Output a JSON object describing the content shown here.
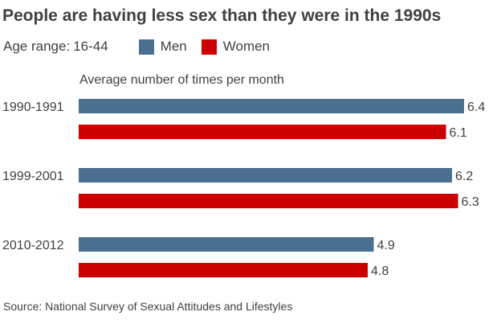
{
  "title": "People are having less sex than they were in the 1990s",
  "legend": {
    "age_label": "Age range:",
    "age_value": "16-44",
    "items": [
      {
        "label": "Men",
        "color": "#4a6f8f"
      },
      {
        "label": "Women",
        "color": "#cc0000"
      }
    ]
  },
  "source": "Source: National Survey of Sexual Attitudes and Lifestyles",
  "chart_data": {
    "type": "bar",
    "orientation": "horizontal",
    "title": "People are having less sex than they were in the 1990s",
    "xlabel": "Average number of times per month",
    "categories": [
      "1990-1991",
      "1999-2001",
      "2010-2012"
    ],
    "series": [
      {
        "name": "Men",
        "color": "#4a6f8f",
        "values": [
          6.4,
          6.2,
          4.9
        ],
        "labels": [
          "6.4",
          "6.2",
          "4.9"
        ]
      },
      {
        "name": "Women",
        "color": "#cc0000",
        "values": [
          6.1,
          6.3,
          4.8
        ],
        "labels": [
          "6.1",
          "6.3",
          "4.8"
        ]
      }
    ],
    "xlim": [
      0,
      6.4
    ],
    "grid": false,
    "data_labels": true,
    "legend_position": "top-left"
  }
}
